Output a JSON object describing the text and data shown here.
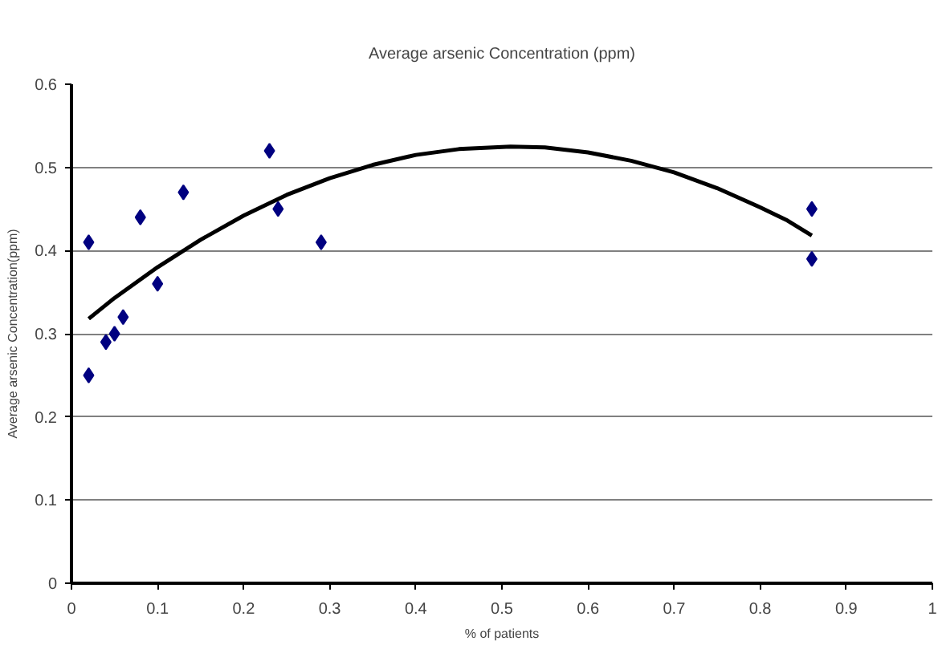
{
  "chart_data": {
    "type": "scatter",
    "title": "Average arsenic Concentration (ppm)",
    "xlabel": "% of patients",
    "ylabel": "Average arsenic Concentration(ppm)",
    "xlim": [
      0,
      1
    ],
    "xticks": [
      0,
      0.1,
      0.2,
      0.3,
      0.4,
      0.5,
      0.6,
      0.7,
      0.8,
      0.9,
      1
    ],
    "ylim": [
      0,
      0.6
    ],
    "yticks": [
      0,
      0.1,
      0.2,
      0.3,
      0.4,
      0.5,
      0.6
    ],
    "grid": "y",
    "marker": "diamond",
    "series": [
      {
        "color": "#000080",
        "x": [
          0.02,
          0.02,
          0.04,
          0.05,
          0.06,
          0.08,
          0.1,
          0.13,
          0.23,
          0.24,
          0.29,
          0.86,
          0.86
        ],
        "values": [
          0.25,
          0.41,
          0.29,
          0.3,
          0.32,
          0.44,
          0.36,
          0.47,
          0.52,
          0.45,
          0.41,
          0.45,
          0.39
        ]
      },
      {
        "type": "line",
        "color": "#000000",
        "marker": "none",
        "x": [
          0.02,
          0.05,
          0.1,
          0.15,
          0.2,
          0.25,
          0.3,
          0.35,
          0.4,
          0.45,
          0.51,
          0.55,
          0.6,
          0.65,
          0.7,
          0.75,
          0.8,
          0.83,
          0.86
        ],
        "values": [
          0.318,
          0.343,
          0.38,
          0.413,
          0.442,
          0.467,
          0.487,
          0.503,
          0.515,
          0.522,
          0.525,
          0.524,
          0.518,
          0.508,
          0.494,
          0.475,
          0.452,
          0.437,
          0.418
        ]
      }
    ]
  }
}
